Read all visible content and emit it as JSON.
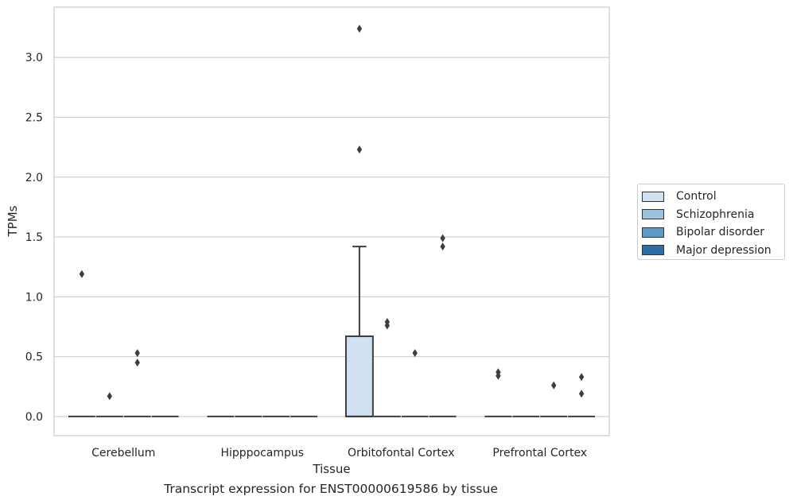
{
  "caption": "Transcript expression for ENST00000619586 by tissue",
  "chart_data": {
    "type": "box",
    "xlabel": "Tissue",
    "ylabel": "TPMs",
    "ylim": [
      -0.16,
      3.42
    ],
    "yticks": [
      0.0,
      0.5,
      1.0,
      1.5,
      2.0,
      2.5,
      3.0
    ],
    "ytick_labels": [
      "0.0",
      "0.5",
      "1.0",
      "1.5",
      "2.0",
      "2.5",
      "3.0"
    ],
    "grid": "horizontal",
    "legend_position": "right",
    "categories": [
      "Cerebellum",
      "Hipppocampus",
      "Orbitofontal Cortex",
      "Prefrontal Cortex"
    ],
    "series": [
      {
        "name": "Control",
        "color": "#d0e1f2",
        "boxes": [
          {
            "category": "Cerebellum",
            "q1": 0,
            "median": 0,
            "q3": 0,
            "whisker_low": 0,
            "whisker_high": 0,
            "outliers": [
              1.19
            ]
          },
          {
            "category": "Hipppocampus",
            "q1": 0,
            "median": 0,
            "q3": 0,
            "whisker_low": 0,
            "whisker_high": 0,
            "outliers": []
          },
          {
            "category": "Orbitofontal Cortex",
            "q1": 0,
            "median": 0,
            "q3": 0.67,
            "whisker_low": 0,
            "whisker_high": 1.42,
            "outliers": [
              2.23,
              3.24
            ]
          },
          {
            "category": "Prefrontal Cortex",
            "q1": 0,
            "median": 0,
            "q3": 0,
            "whisker_low": 0,
            "whisker_high": 0,
            "outliers": [
              0.37,
              0.34
            ]
          }
        ]
      },
      {
        "name": "Schizophrenia",
        "color": "#9ac4de",
        "boxes": [
          {
            "category": "Cerebellum",
            "q1": 0,
            "median": 0,
            "q3": 0,
            "whisker_low": 0,
            "whisker_high": 0,
            "outliers": [
              0.17
            ]
          },
          {
            "category": "Hipppocampus",
            "q1": 0,
            "median": 0,
            "q3": 0,
            "whisker_low": 0,
            "whisker_high": 0,
            "outliers": []
          },
          {
            "category": "Orbitofontal Cortex",
            "q1": 0,
            "median": 0,
            "q3": 0,
            "whisker_low": 0,
            "whisker_high": 0,
            "outliers": [
              0.79,
              0.76
            ]
          },
          {
            "category": "Prefrontal Cortex",
            "q1": 0,
            "median": 0,
            "q3": 0,
            "whisker_low": 0,
            "whisker_high": 0,
            "outliers": []
          }
        ]
      },
      {
        "name": "Bipolar disorder",
        "color": "#5a9bc7",
        "boxes": [
          {
            "category": "Cerebellum",
            "q1": 0,
            "median": 0,
            "q3": 0,
            "whisker_low": 0,
            "whisker_high": 0,
            "outliers": [
              0.53,
              0.45
            ]
          },
          {
            "category": "Hipppocampus",
            "q1": 0,
            "median": 0,
            "q3": 0,
            "whisker_low": 0,
            "whisker_high": 0,
            "outliers": []
          },
          {
            "category": "Orbitofontal Cortex",
            "q1": 0,
            "median": 0,
            "q3": 0,
            "whisker_low": 0,
            "whisker_high": 0,
            "outliers": [
              0.53
            ]
          },
          {
            "category": "Prefrontal Cortex",
            "q1": 0,
            "median": 0,
            "q3": 0,
            "whisker_low": 0,
            "whisker_high": 0,
            "outliers": [
              0.26
            ]
          }
        ]
      },
      {
        "name": "Major depression",
        "color": "#2d6ea6",
        "boxes": [
          {
            "category": "Cerebellum",
            "q1": 0,
            "median": 0,
            "q3": 0,
            "whisker_low": 0,
            "whisker_high": 0,
            "outliers": []
          },
          {
            "category": "Hipppocampus",
            "q1": 0,
            "median": 0,
            "q3": 0,
            "whisker_low": 0,
            "whisker_high": 0,
            "outliers": []
          },
          {
            "category": "Orbitofontal Cortex",
            "q1": 0,
            "median": 0,
            "q3": 0,
            "whisker_low": 0,
            "whisker_high": 0,
            "outliers": [
              1.49,
              1.42
            ]
          },
          {
            "category": "Prefrontal Cortex",
            "q1": 0,
            "median": 0,
            "q3": 0,
            "whisker_low": 0,
            "whisker_high": 0,
            "outliers": [
              0.33,
              0.19
            ]
          }
        ]
      }
    ]
  }
}
